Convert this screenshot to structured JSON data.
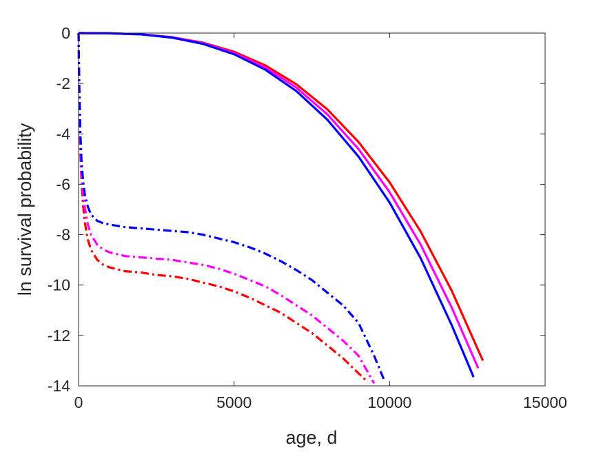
{
  "chart_data": {
    "type": "line",
    "xlabel": "age, d",
    "ylabel": "ln survival probability",
    "xlim": [
      0,
      15000
    ],
    "ylim": [
      -14,
      0
    ],
    "xticks": [
      0,
      5000,
      10000,
      15000
    ],
    "yticks": [
      0,
      -2,
      -4,
      -6,
      -8,
      -10,
      -12,
      -14
    ],
    "grid": false,
    "legend": "none",
    "series": [
      {
        "color": "#ff0000",
        "style": "solid",
        "x": [
          0,
          1000,
          2000,
          3000,
          4000,
          5000,
          6000,
          7000,
          8000,
          9000,
          10000,
          11000,
          12000,
          13000
        ],
        "y": [
          0,
          -0.01,
          -0.05,
          -0.16,
          -0.38,
          -0.74,
          -1.28,
          -2.03,
          -3.03,
          -4.32,
          -5.92,
          -7.88,
          -10.23,
          -13.0
        ]
      },
      {
        "color": "#ff00ff",
        "style": "solid",
        "x": [
          0,
          1000,
          2000,
          3000,
          4000,
          5000,
          6000,
          7000,
          8000,
          9000,
          10000,
          11000,
          12000,
          12850
        ],
        "y": [
          0,
          -0.01,
          -0.05,
          -0.17,
          -0.4,
          -0.79,
          -1.36,
          -2.16,
          -3.23,
          -4.6,
          -6.31,
          -8.4,
          -10.9,
          -13.3
        ]
      },
      {
        "color": "#0000ff",
        "style": "solid",
        "x": [
          0,
          1000,
          2000,
          3000,
          4000,
          5000,
          6000,
          7000,
          8000,
          9000,
          10000,
          11000,
          12000,
          12700
        ],
        "y": [
          0,
          -0.01,
          -0.05,
          -0.18,
          -0.43,
          -0.84,
          -1.45,
          -2.3,
          -3.44,
          -4.9,
          -6.72,
          -8.94,
          -11.6,
          -13.65
        ]
      },
      {
        "color": "#ff0000",
        "style": "dashdot",
        "x": [
          0,
          25,
          60,
          100,
          150,
          200,
          300,
          400,
          600,
          800,
          1000,
          1500,
          2000,
          2500,
          3000,
          3500,
          4000,
          4500,
          5000,
          5500,
          6000,
          6500,
          7000,
          7500,
          8000,
          8500,
          9000,
          9300
        ],
        "y": [
          0,
          -2.8,
          -4.8,
          -6.0,
          -6.9,
          -7.5,
          -8.2,
          -8.6,
          -9.0,
          -9.2,
          -9.3,
          -9.45,
          -9.5,
          -9.6,
          -9.65,
          -9.75,
          -9.9,
          -10.05,
          -10.25,
          -10.5,
          -10.8,
          -11.1,
          -11.5,
          -11.9,
          -12.4,
          -12.9,
          -13.5,
          -13.85
        ]
      },
      {
        "color": "#ff00ff",
        "style": "dashdot",
        "x": [
          0,
          25,
          60,
          100,
          150,
          200,
          300,
          400,
          600,
          800,
          1000,
          1500,
          2000,
          2500,
          3000,
          3500,
          4000,
          4500,
          5000,
          5500,
          6000,
          6500,
          7000,
          7500,
          8000,
          8500,
          9000,
          9500
        ],
        "y": [
          0,
          -2.5,
          -4.4,
          -5.6,
          -6.4,
          -6.9,
          -7.6,
          -8.0,
          -8.4,
          -8.6,
          -8.7,
          -8.85,
          -8.9,
          -8.95,
          -9.0,
          -9.1,
          -9.2,
          -9.35,
          -9.55,
          -9.8,
          -10.05,
          -10.4,
          -10.8,
          -11.2,
          -11.7,
          -12.2,
          -12.8,
          -13.9
        ]
      },
      {
        "color": "#0000ff",
        "style": "dashdot",
        "x": [
          0,
          25,
          60,
          100,
          150,
          200,
          300,
          400,
          600,
          800,
          1000,
          1500,
          2000,
          2500,
          3000,
          3500,
          4000,
          4500,
          5000,
          5500,
          6000,
          6500,
          7000,
          7500,
          8000,
          8500,
          9000,
          9500,
          9850
        ],
        "y": [
          0,
          -2.2,
          -4.0,
          -5.2,
          -5.9,
          -6.4,
          -6.9,
          -7.2,
          -7.45,
          -7.55,
          -7.6,
          -7.7,
          -7.75,
          -7.8,
          -7.85,
          -7.9,
          -8.0,
          -8.15,
          -8.3,
          -8.5,
          -8.75,
          -9.05,
          -9.4,
          -9.8,
          -10.3,
          -10.8,
          -11.5,
          -12.8,
          -13.85
        ]
      }
    ]
  }
}
